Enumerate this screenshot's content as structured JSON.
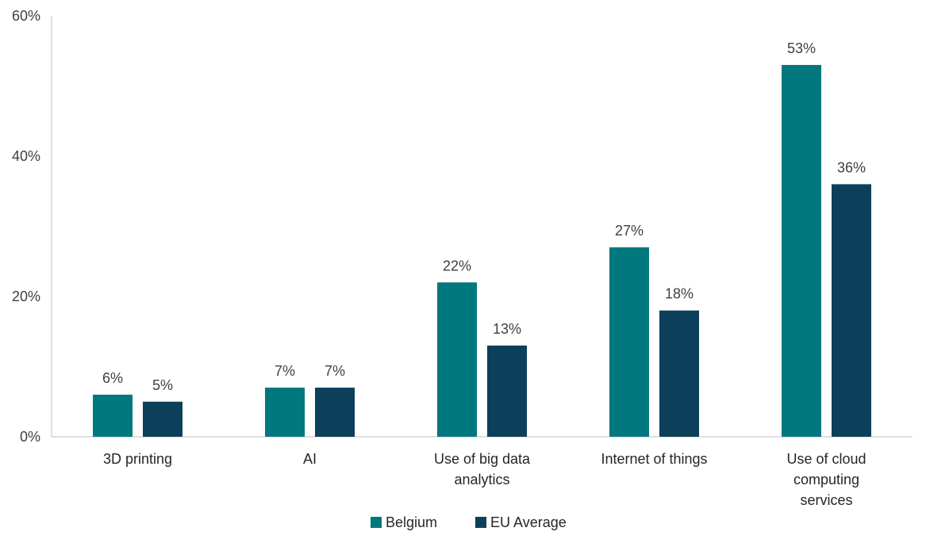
{
  "chart_data": {
    "type": "bar",
    "categories": [
      [
        "3D printing"
      ],
      [
        "AI"
      ],
      [
        "Use of big data",
        "analytics"
      ],
      [
        "Internet of things"
      ],
      [
        "Use of cloud",
        "computing",
        "services"
      ]
    ],
    "series": [
      {
        "name": "Belgium",
        "values": [
          6,
          7,
          22,
          27,
          53
        ],
        "labels": [
          "6%",
          "7%",
          "22%",
          "27%",
          "53%"
        ],
        "color": "#00787d"
      },
      {
        "name": "EU Average",
        "values": [
          5,
          7,
          13,
          18,
          36
        ],
        "labels": [
          "5%",
          "7%",
          "13%",
          "18%",
          "36%"
        ],
        "color": "#0c405a"
      }
    ],
    "y_ticks": [
      0,
      20,
      40,
      60
    ],
    "y_tick_labels": [
      "0%",
      "20%",
      "40%",
      "60%"
    ],
    "ylim": [
      0,
      60
    ],
    "grid": false,
    "legend_position": "bottom"
  }
}
